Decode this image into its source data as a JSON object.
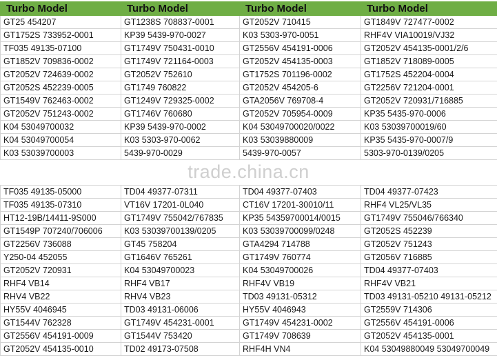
{
  "header": [
    "Turbo Model",
    "Turbo Model",
    "Turbo Model",
    "Turbo Model"
  ],
  "section1": [
    [
      "GT25 454207",
      "GT1238S 708837-0001",
      "GT2052V 710415",
      "GT1849V 727477-0002"
    ],
    [
      "GT1752S 733952-0001",
      "KP39 5439-970-0027",
      "K03 5303-970-0051",
      "RHF4V VIA10019/VJ32"
    ],
    [
      "TF035 49135-07100",
      "GT1749V 750431-0010",
      "GT2556V 454191-0006",
      "GT2052V 454135-0001/2/6"
    ],
    [
      "GT1852V 709836-0002",
      "GT1749V 721164-0003",
      "GT2052V 454135-0003",
      "GT1852V 718089-0005"
    ],
    [
      "GT2052V 724639-0002",
      "GT2052V 752610",
      "GT1752S 701196-0002",
      "GT1752S 452204-0004"
    ],
    [
      "GT2052S 452239-0005",
      "GT1749 760822",
      "GT2052V 454205-6",
      "GT2256V 721204-0001"
    ],
    [
      "GT1549V 762463-0002",
      "GT1249V 729325-0002",
      "GTA2056V 769708-4",
      "GT2052V 720931/716885"
    ],
    [
      "GT2052V 751243-0002",
      "GT1746V 760680",
      "GT2052V 705954-0009",
      "KP35 5435-970-0006"
    ],
    [
      "K04 53049700032",
      "KP39 5439-970-0002",
      "K04 53049700020/0022",
      "K03 53039700019/60"
    ],
    [
      "K04 53049700054",
      "K03 5303-970-0062",
      "K03 53039880009",
      "KP35 5435-970-0007/9"
    ],
    [
      "K03 53039700003",
      "5439-970-0029",
      "5439-970-0057",
      "5303-970-0139/0205"
    ]
  ],
  "watermark": "trade.china.cn",
  "section2": [
    [
      " TF035 49135-05000",
      "TD04 49377-07311",
      "TD04 49377-07403",
      "TD04 49377-07423"
    ],
    [
      "TF035 49135-07310",
      "VT16V 17201-0L040",
      "CT16V 17201-30010/11",
      "RHF4 VL25/VL35"
    ],
    [
      "HT12-19B/14411-9S000",
      "GT1749V 755042/767835",
      "KP35 54359700014/0015",
      "GT1749V 755046/766340"
    ],
    [
      "GT1549P 707240/706006",
      "K03 53039700139/0205",
      "K03 53039700099/0248",
      "GT2052S 452239"
    ],
    [
      "GT2256V 736088",
      "GT45 758204",
      "GTA4294 714788",
      "GT2052V 751243"
    ],
    [
      "Y250-04 452055",
      "GT1646V 765261",
      "GT1749V 760774",
      "GT2056V 716885"
    ],
    [
      "GT2052V 720931",
      "K04 53049700023",
      "K04 53049700026",
      "TD04 49377-07403"
    ],
    [
      "RHF4 VB14",
      "RHF4 VB17",
      "RHF4V VB19",
      "RHF4V VB21"
    ],
    [
      "RHV4 VB22",
      "RHV4 VB23",
      "TD03 49131-05312",
      "TD03 49131-05210 49131-05212"
    ],
    [
      "HY55V 4046945",
      "TD03 49131-06006",
      "HY55V 4046943",
      "GT2559V 714306"
    ],
    [
      "GT1544V 762328",
      "GT1749V 454231-0001",
      "GT1749V 454231-0002",
      "GT2556V 454191-0006"
    ],
    [
      "GT2556V 454191-0009",
      "GT1544V 753420",
      "GT1749V 708639",
      "GT2052V 454135-0001"
    ],
    [
      "GT2052V 454135-0010",
      "TD02 49173-07508",
      " RHF4H  VN4",
      "K04 53049880049 53049700049"
    ]
  ],
  "colors": {
    "header_bg": "#6fae45",
    "grid": "#d4d4d4",
    "watermark": "#cfcfcf"
  }
}
